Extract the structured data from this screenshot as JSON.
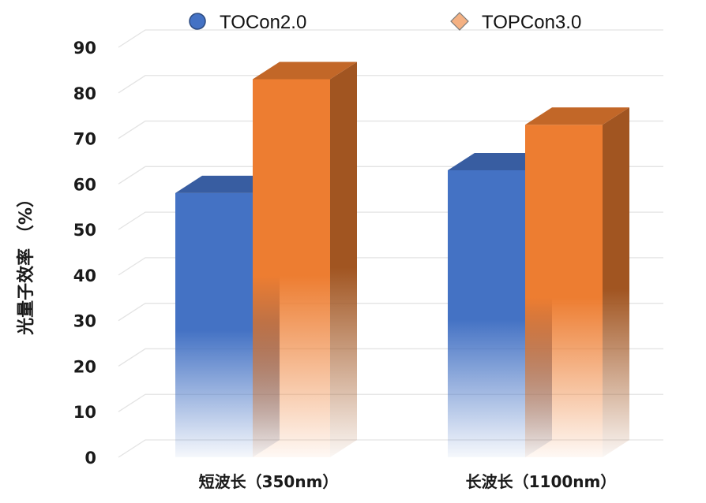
{
  "chart_data": {
    "type": "bar",
    "style": "3d-clustered-column",
    "categories": [
      "短波长（350nm）",
      "长波长（1100nm）"
    ],
    "series": [
      {
        "name": "TOCon2.0",
        "values": [
          58,
          63
        ],
        "color": "#4472c4",
        "marker": "circle"
      },
      {
        "name": "TOPCon3.0",
        "values": [
          83,
          73
        ],
        "color": "#ed7d31",
        "marker": "diamond"
      }
    ],
    "ylabel": "光量子效率 （%）",
    "xlabel": "",
    "ylim": [
      0,
      90
    ],
    "yticks": [
      0,
      10,
      20,
      30,
      40,
      50,
      60,
      70,
      80,
      90
    ],
    "grid": true,
    "legend_position": "top"
  }
}
